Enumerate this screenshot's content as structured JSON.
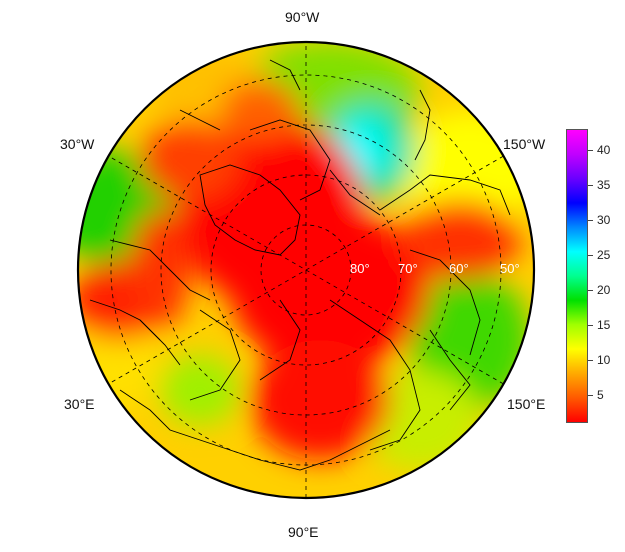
{
  "map": {
    "projection": "north polar stereographic",
    "longitude_labels": [
      "90°W",
      "30°W",
      "150°W",
      "30°E",
      "150°E",
      "90°E"
    ],
    "latitude_labels": [
      "80°",
      "70°",
      "60°",
      "50°"
    ],
    "colorbar": {
      "ticks": [
        "5",
        "10",
        "15",
        "20",
        "25",
        "30",
        "35",
        "40"
      ],
      "min": 1,
      "max": 43,
      "colors": [
        "#ff0000",
        "#ff5a00",
        "#ffaa00",
        "#ffff00",
        "#a0ff00",
        "#00e000",
        "#00ff90",
        "#00ffff",
        "#0088ff",
        "#0000ff",
        "#6a00ff",
        "#c000ff",
        "#ff00ff"
      ]
    }
  }
}
